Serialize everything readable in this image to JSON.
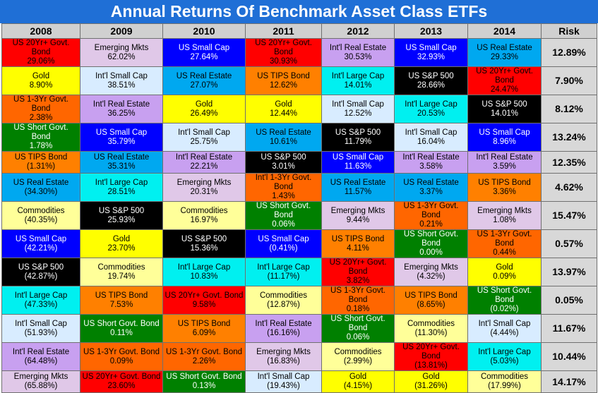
{
  "title": "Annual Returns Of Benchmark Asset Class ETFs",
  "headers": [
    "2008",
    "2009",
    "2010",
    "2011",
    "2012",
    "2013",
    "2014",
    "Risk"
  ],
  "colors": {
    "US 20Yr+ Govt. Bond": "#ff0000",
    "Emerging Mkts": "#e0c8e8",
    "US Small Cap": "#0000ff",
    "Int'l Real Estate": "#c8a0f0",
    "US Real Estate": "#00a8f0",
    "Gold": "#ffff00",
    "Int'l Small Cap": "#d8ecff",
    "US TIPS Bond": "#ff8000",
    "Int'l Large Cap": "#00f0f0",
    "US S&P 500": "#000000",
    "US 1-3Yr Govt. Bond": "#ff6600",
    "US Short Govt. Bond": "#008000",
    "Commodities": "#ffff99"
  },
  "text_colors": {
    "US 20Yr+ Govt. Bond": "#000000",
    "US Small Cap": "#ffffff",
    "US S&P 500": "#ffffff",
    "US Short Govt. Bond": "#ffffff"
  },
  "chart_data": {
    "type": "table",
    "title": "Annual Returns Of Benchmark Asset Class ETFs",
    "columns": [
      "2008",
      "2009",
      "2010",
      "2011",
      "2012",
      "2013",
      "2014"
    ],
    "rows": [
      [
        {
          "asset": "US 20Yr+ Govt. Bond",
          "return": "29.06%"
        },
        {
          "asset": "Emerging Mkts",
          "return": "62.02%"
        },
        {
          "asset": "US Small Cap",
          "return": "27.64%"
        },
        {
          "asset": "US 20Yr+ Govt. Bond",
          "return": "30.93%"
        },
        {
          "asset": "Int'l Real Estate",
          "return": "30.53%"
        },
        {
          "asset": "US Small Cap",
          "return": "32.93%"
        },
        {
          "asset": "US Real Estate",
          "return": "29.33%"
        }
      ],
      [
        {
          "asset": "Gold",
          "return": "8.90%"
        },
        {
          "asset": "Int'l Small Cap",
          "return": "38.51%"
        },
        {
          "asset": "US Real Estate",
          "return": "27.07%"
        },
        {
          "asset": "US TIPS Bond",
          "return": "12.62%"
        },
        {
          "asset": "Int'l Large Cap",
          "return": "14.01%"
        },
        {
          "asset": "US S&P 500",
          "return": "28.66%"
        },
        {
          "asset": "US 20Yr+ Govt. Bond",
          "return": "24.47%"
        }
      ],
      [
        {
          "asset": "US 1-3Yr Govt. Bond",
          "return": "2.38%"
        },
        {
          "asset": "Int'l Real Estate",
          "return": "36.25%"
        },
        {
          "asset": "Gold",
          "return": "26.49%"
        },
        {
          "asset": "Gold",
          "return": "12.44%"
        },
        {
          "asset": "Int'l Small Cap",
          "return": "12.52%"
        },
        {
          "asset": "Int'l Large Cap",
          "return": "20.53%"
        },
        {
          "asset": "US S&P 500",
          "return": "14.01%"
        }
      ],
      [
        {
          "asset": "US Short Govt. Bond",
          "return": "1.78%"
        },
        {
          "asset": "US Small Cap",
          "return": "35.79%"
        },
        {
          "asset": "Int'l Small Cap",
          "return": "25.75%"
        },
        {
          "asset": "US Real Estate",
          "return": "10.61%"
        },
        {
          "asset": "US S&P 500",
          "return": "11.79%"
        },
        {
          "asset": "Int'l Small Cap",
          "return": "16.04%"
        },
        {
          "asset": "US Small Cap",
          "return": "8.96%"
        }
      ],
      [
        {
          "asset": "US TIPS Bond",
          "return": "(1.31%)"
        },
        {
          "asset": "US Real Estate",
          "return": "35.31%"
        },
        {
          "asset": "Int'l Real Estate",
          "return": "22.21%"
        },
        {
          "asset": "US S&P 500",
          "return": "3.01%"
        },
        {
          "asset": "US Small Cap",
          "return": "11.63%"
        },
        {
          "asset": "Int'l Real Estate",
          "return": "3.58%"
        },
        {
          "asset": "Int'l Real Estate",
          "return": "3.59%"
        }
      ],
      [
        {
          "asset": "US Real Estate",
          "return": "(34.30%)"
        },
        {
          "asset": "Int'l Large Cap",
          "return": "28.51%"
        },
        {
          "asset": "Emerging Mkts",
          "return": "20.31%"
        },
        {
          "asset": "Int'l 1-3Yr Govt. Bond",
          "color_key": "US 1-3Yr Govt. Bond",
          "return": "1.43%"
        },
        {
          "asset": "US Real Estate",
          "return": "11.57%"
        },
        {
          "asset": "US Real Estate",
          "return": "3.37%"
        },
        {
          "asset": "US TIPS Bond",
          "return": "3.36%"
        }
      ],
      [
        {
          "asset": "Commodities",
          "return": "(40.35%)"
        },
        {
          "asset": "US S&P 500",
          "return": "25.93%"
        },
        {
          "asset": "Commodities",
          "return": "16.97%"
        },
        {
          "asset": "US Short Govt. Bond",
          "return": "0.06%"
        },
        {
          "asset": "Emerging Mkts",
          "return": "9.44%"
        },
        {
          "asset": "US 1-3Yr Govt. Bond",
          "return": "0.21%"
        },
        {
          "asset": "Emerging Mkts",
          "return": "1.08%"
        }
      ],
      [
        {
          "asset": "US Small Cap",
          "return": "(42.21%)"
        },
        {
          "asset": "Gold",
          "return": "23.70%"
        },
        {
          "asset": "US S&P 500",
          "return": "15.36%"
        },
        {
          "asset": "US Small Cap",
          "return": "(0.41%)"
        },
        {
          "asset": "US TIPS Bond",
          "return": "4.11%"
        },
        {
          "asset": "US Short Govt. Bond",
          "return": "0.00%"
        },
        {
          "asset": "US 1-3Yr Govt. Bond",
          "return": "0.44%"
        }
      ],
      [
        {
          "asset": "US S&P 500",
          "return": "(42.87%)"
        },
        {
          "asset": "Commodities",
          "return": "19.74%"
        },
        {
          "asset": "Int'l Large Cap",
          "return": "10.83%"
        },
        {
          "asset": "Int'l Large Cap",
          "return": "(11.17%)"
        },
        {
          "asset": "US 20Yr+ Govt. Bond",
          "return": "3.82%"
        },
        {
          "asset": "Emerging Mkts",
          "return": "(4.32%)"
        },
        {
          "asset": "Gold",
          "return": "0.09%"
        }
      ],
      [
        {
          "asset": "Int'l Large Cap",
          "return": "(47.33%)"
        },
        {
          "asset": "US TIPS Bond",
          "return": "7.53%"
        },
        {
          "asset": "US 20Yr+ Govt. Bond",
          "return": "9.58%"
        },
        {
          "asset": "Commodities",
          "return": "(12.87%)"
        },
        {
          "asset": "US 1-3Yr Govt. Bond",
          "return": "0.18%"
        },
        {
          "asset": "US TIPS Bond",
          "return": "(8.65%)"
        },
        {
          "asset": "US Short Govt. Bond",
          "return": "(0.02%)"
        }
      ],
      [
        {
          "asset": "Int'l Small Cap",
          "return": "(51.93%)"
        },
        {
          "asset": "US Short Govt. Bond",
          "return": "0.11%"
        },
        {
          "asset": "US TIPS Bond",
          "return": "6.09%"
        },
        {
          "asset": "Int'l Real Estate",
          "return": "(16.16%)"
        },
        {
          "asset": "US Short Govt. Bond",
          "return": "0.06%"
        },
        {
          "asset": "Commodities",
          "return": "(11.30%)"
        },
        {
          "asset": "Int'l Small Cap",
          "return": "(4.44%)"
        }
      ],
      [
        {
          "asset": "Int'l Real Estate",
          "return": "(64.48%)"
        },
        {
          "asset": "US 1-3Yr Govt. Bond",
          "return": "0.09%"
        },
        {
          "asset": "US 1-3Yr Govt. Bond",
          "return": "2.26%"
        },
        {
          "asset": "Emerging Mkts",
          "return": "(16.83%)"
        },
        {
          "asset": "Commodities",
          "return": "(2.99%)"
        },
        {
          "asset": "US 20Yr+ Govt. Bond",
          "return": "(13.81%)"
        },
        {
          "asset": "Int'l Large Cap",
          "return": "(5.03%)"
        }
      ],
      [
        {
          "asset": "Emerging Mkts",
          "return": "(65.88%)"
        },
        {
          "asset": "US 20Yr+ Govt. Bond",
          "return": "23.60%"
        },
        {
          "asset": "US Short Govt. Bond",
          "return": "0.13%"
        },
        {
          "asset": "Int'l Small Cap",
          "return": "(19.43%)"
        },
        {
          "asset": "Gold",
          "return": "(4.15%)"
        },
        {
          "asset": "Gold",
          "return": "(31.26%)"
        },
        {
          "asset": "Commodities",
          "return": "(17.99%)"
        }
      ]
    ],
    "risk": [
      "12.89%",
      "7.90%",
      "8.12%",
      "13.24%",
      "12.35%",
      "4.62%",
      "15.47%",
      "0.57%",
      "13.97%",
      "0.05%",
      "11.67%",
      "10.44%",
      "14.17%"
    ]
  }
}
